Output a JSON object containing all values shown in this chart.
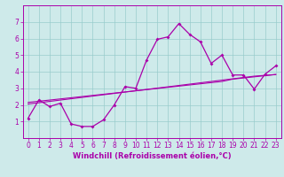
{
  "title": "",
  "xlabel": "Windchill (Refroidissement éolien,°C)",
  "ylabel": "",
  "background_color": "#ceeaea",
  "line_color": "#aa00aa",
  "grid_color": "#99cccc",
  "x_data": [
    0,
    1,
    2,
    3,
    4,
    5,
    6,
    7,
    8,
    9,
    10,
    11,
    12,
    13,
    14,
    15,
    16,
    17,
    18,
    19,
    20,
    21,
    22,
    23
  ],
  "y_main": [
    1.2,
    2.3,
    1.9,
    2.1,
    0.85,
    0.7,
    0.7,
    1.1,
    2.0,
    3.1,
    3.0,
    4.7,
    5.95,
    6.1,
    6.9,
    6.25,
    5.8,
    4.5,
    5.0,
    3.8,
    3.8,
    2.95,
    3.85,
    4.35
  ],
  "y_trend1": [
    2.05,
    2.13,
    2.21,
    2.29,
    2.37,
    2.45,
    2.53,
    2.61,
    2.69,
    2.77,
    2.85,
    2.93,
    3.01,
    3.09,
    3.17,
    3.25,
    3.33,
    3.41,
    3.49,
    3.57,
    3.65,
    3.73,
    3.78,
    3.83
  ],
  "y_trend2": [
    2.15,
    2.22,
    2.29,
    2.36,
    2.43,
    2.5,
    2.57,
    2.64,
    2.71,
    2.78,
    2.85,
    2.92,
    2.99,
    3.06,
    3.13,
    3.2,
    3.27,
    3.34,
    3.41,
    3.55,
    3.62,
    3.69,
    3.76,
    3.83
  ],
  "ylim": [
    0,
    8
  ],
  "xlim": [
    -0.5,
    23.5
  ],
  "yticks": [
    1,
    2,
    3,
    4,
    5,
    6,
    7
  ],
  "xticks": [
    0,
    1,
    2,
    3,
    4,
    5,
    6,
    7,
    8,
    9,
    10,
    11,
    12,
    13,
    14,
    15,
    16,
    17,
    18,
    19,
    20,
    21,
    22,
    23
  ],
  "tick_fontsize": 5.5,
  "xlabel_fontsize": 6.0,
  "marker": "D",
  "markersize": 2.0,
  "linewidth": 0.9,
  "trend_linewidth": 0.8
}
